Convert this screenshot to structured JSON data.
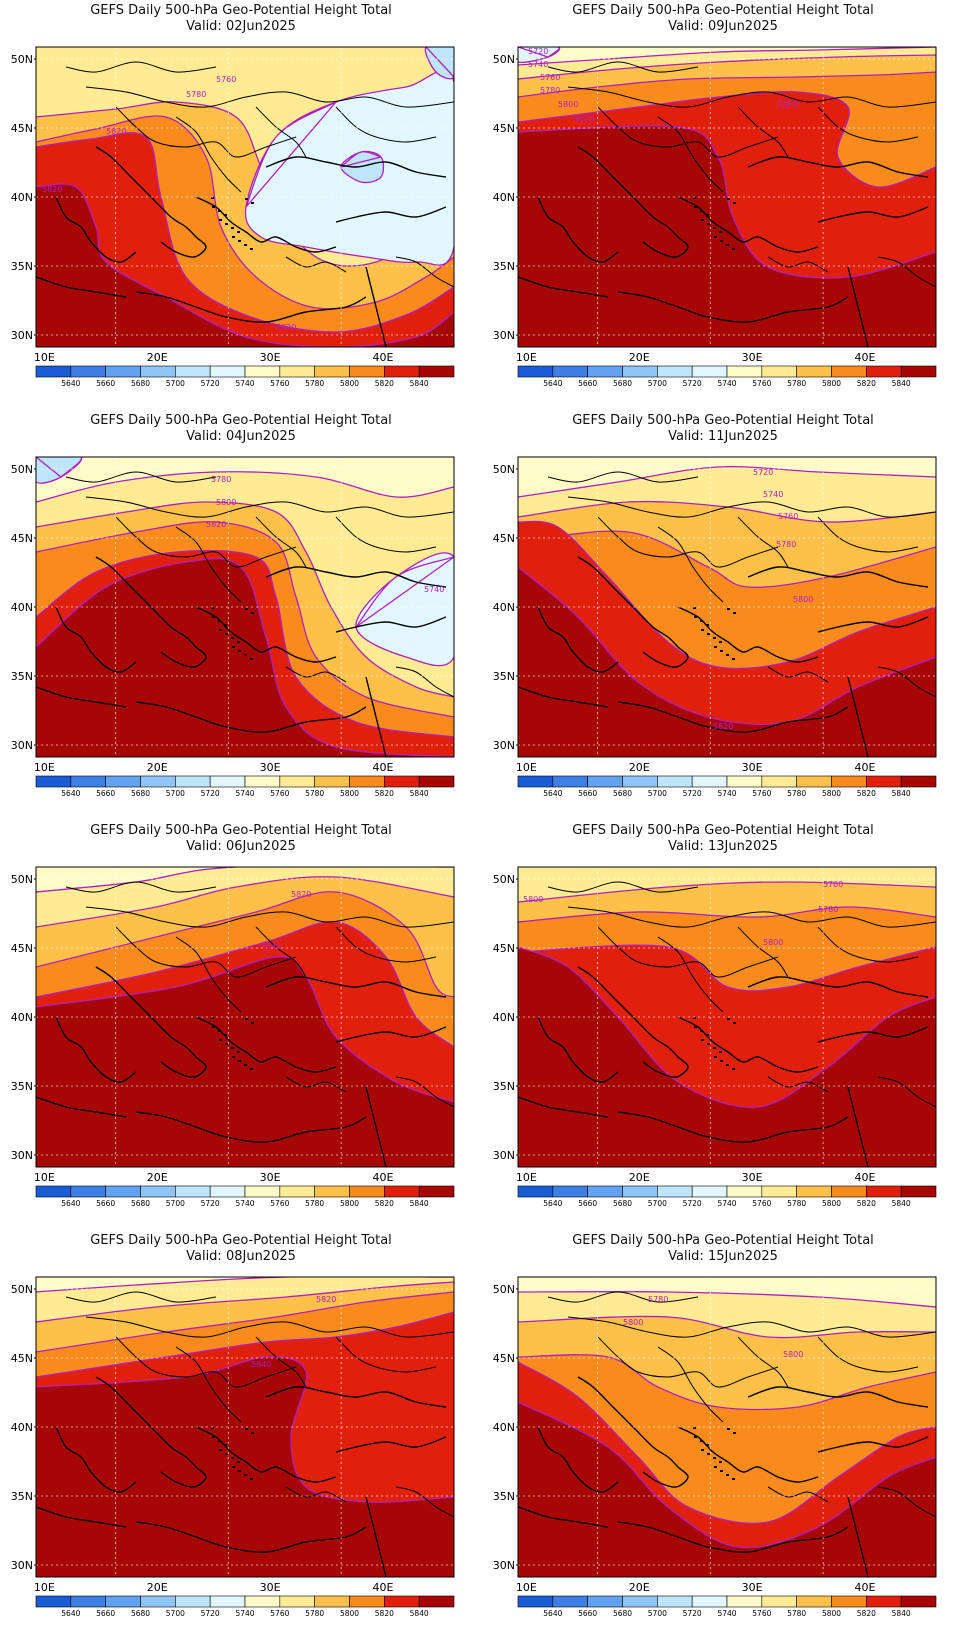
{
  "legend_levels": [
    5640,
    5660,
    5680,
    5700,
    5720,
    5740,
    5760,
    5780,
    5800,
    5820,
    5840
  ],
  "legend_colors": [
    "#1a5bd6",
    "#3e7fe6",
    "#62a2f0",
    "#8ec4f6",
    "#bfe5fb",
    "#e2f7fd",
    "#fffbc8",
    "#feeb94",
    "#fdc14a",
    "#f98b1c",
    "#e0200d",
    "#a60604"
  ],
  "contour_color": "#b020c0",
  "lon_ticks": [
    "10E",
    "20E",
    "30E",
    "40E"
  ],
  "lat_ticks": [
    "50N",
    "45N",
    "40N",
    "35N",
    "30N"
  ],
  "panels": [
    {
      "title": "GEFS Daily 500-hPa Geo-Potential Height Total",
      "valid": "Valid: 02Jun2025",
      "labels": [
        "5760",
        "5780",
        "5820",
        "5820",
        "5820"
      ]
    },
    {
      "title": "GEFS Daily 500-hPa Geo-Potential Height Total",
      "valid": "Valid: 09Jun2025",
      "labels": [
        "5720",
        "5740",
        "5760",
        "5780",
        "5800",
        "5820",
        "5800"
      ]
    },
    {
      "title": "GEFS Daily 500-hPa Geo-Potential Height Total",
      "valid": "Valid: 04Jun2025",
      "labels": [
        "5780",
        "5800",
        "5820",
        "5740"
      ]
    },
    {
      "title": "GEFS Daily 500-hPa Geo-Potential Height Total",
      "valid": "Valid: 11Jun2025",
      "labels": [
        "5720",
        "5740",
        "5760",
        "5780",
        "5800",
        "5820"
      ]
    },
    {
      "title": "GEFS Daily 500-hPa Geo-Potential Height Total",
      "valid": "Valid: 06Jun2025",
      "labels": [
        "5820",
        "5840"
      ]
    },
    {
      "title": "GEFS Daily 500-hPa Geo-Potential Height Total",
      "valid": "Valid: 13Jun2025",
      "labels": [
        "5800",
        "5760",
        "5780",
        "5800"
      ]
    },
    {
      "title": "GEFS Daily 500-hPa Geo-Potential Height Total",
      "valid": "Valid: 08Jun2025",
      "labels": [
        "5820",
        "5840"
      ]
    },
    {
      "title": "GEFS Daily 500-hPa Geo-Potential Height Total",
      "valid": "Valid: 15Jun2025",
      "labels": [
        "5780",
        "5800",
        "5800"
      ]
    }
  ]
}
